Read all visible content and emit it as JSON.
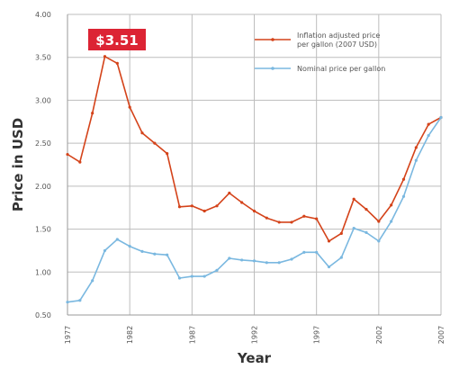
{
  "chart_data": {
    "type": "line",
    "xlabel": "Year",
    "ylabel": "Price in USD",
    "xlim": [
      1977,
      2007
    ],
    "ylim": [
      0.5,
      4.0
    ],
    "x_ticks": [
      1977,
      1982,
      1987,
      1992,
      1997,
      2002,
      2007
    ],
    "x_tick_labels": [
      "1977",
      "1982",
      "1987",
      "1992",
      "1997",
      "2002",
      "2007"
    ],
    "y_ticks": [
      0.5,
      1.0,
      1.5,
      2.0,
      2.5,
      3.0,
      3.5,
      4.0
    ],
    "y_tick_labels": [
      "0.50",
      "1.00",
      "1.50",
      "2.00",
      "2.50",
      "3.00",
      "3.50",
      "4.00"
    ],
    "grid": true,
    "legend_position": "top-right",
    "x": [
      1977,
      1978,
      1979,
      1980,
      1981,
      1982,
      1983,
      1984,
      1985,
      1986,
      1987,
      1988,
      1989,
      1990,
      1991,
      1992,
      1993,
      1994,
      1995,
      1996,
      1997,
      1998,
      1999,
      2000,
      2001,
      2002,
      2003,
      2004,
      2005,
      2006,
      2007
    ],
    "series": [
      {
        "name": "Inflation adjusted price per gallon (2007 USD)",
        "color": "#d4431a",
        "values": [
          2.37,
          2.28,
          2.85,
          3.51,
          3.43,
          2.92,
          2.62,
          2.5,
          2.38,
          1.76,
          1.77,
          1.71,
          1.77,
          1.92,
          1.81,
          1.71,
          1.63,
          1.58,
          1.58,
          1.65,
          1.62,
          1.36,
          1.45,
          1.85,
          1.73,
          1.59,
          1.78,
          2.08,
          2.45,
          2.72,
          2.8
        ]
      },
      {
        "name": "Nominal price per gallon",
        "color": "#7ab8e0",
        "values": [
          0.65,
          0.67,
          0.9,
          1.25,
          1.38,
          1.3,
          1.24,
          1.21,
          1.2,
          0.93,
          0.95,
          0.95,
          1.02,
          1.16,
          1.14,
          1.13,
          1.11,
          1.11,
          1.15,
          1.23,
          1.23,
          1.06,
          1.17,
          1.51,
          1.46,
          1.36,
          1.59,
          1.88,
          2.3,
          2.59,
          2.8
        ]
      }
    ],
    "annotation": {
      "text": "$3.51",
      "x": 1980,
      "y": 3.51,
      "color": "#dc2434"
    }
  }
}
